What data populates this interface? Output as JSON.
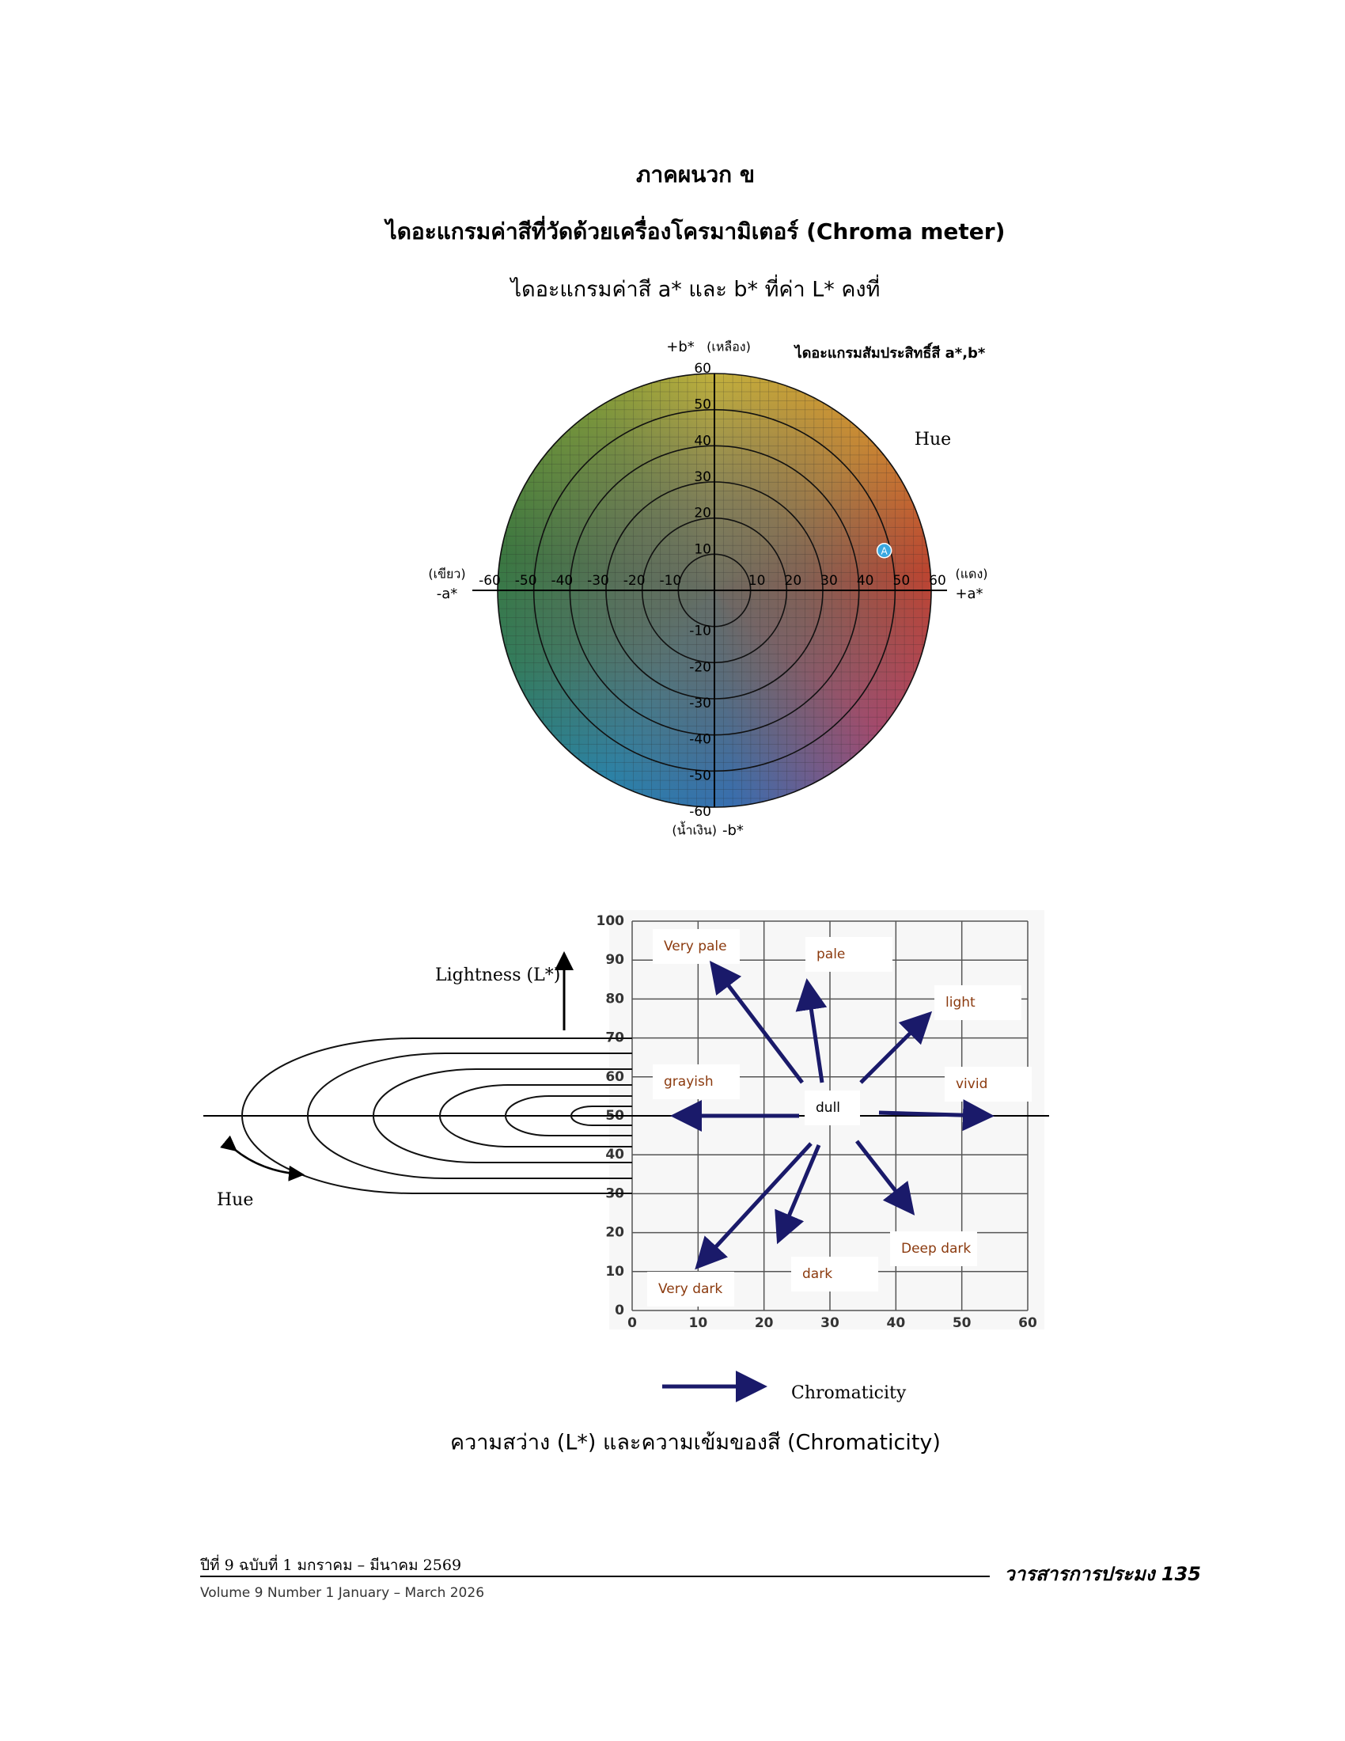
{
  "header": {
    "appendix": "ภาคผนวก ข",
    "title": "ไดอะแกรมค่าสีที่วัดด้วยเครื่องโครมามิเตอร์ (Chroma meter)",
    "subtitle": "ไดอะแกรมค่าสี a* และ b* ที่ค่า L* คงที่"
  },
  "ab_diagram": {
    "title": "ไดอะแกรมสัมประสิทธิ์สี a*,b*",
    "hue_label": "Hue",
    "axes": {
      "plus_b": "+b*",
      "plus_b_note": "(เหลือง)",
      "minus_b": "-b*",
      "minus_b_note": "(น้ำเงิน)",
      "minus_a": "-a*",
      "minus_a_note": "(เขียว)",
      "plus_a": "+a*",
      "plus_a_note": "(แดง)"
    },
    "lim": [
      -60,
      60
    ],
    "xticks": [
      -60,
      -50,
      -40,
      -30,
      -20,
      -10,
      10,
      20,
      30,
      40,
      50,
      60
    ],
    "yticks": [
      -60,
      -50,
      -40,
      -30,
      -20,
      -10,
      10,
      20,
      30,
      40,
      50,
      60
    ],
    "point": {
      "label": "A",
      "a": 47,
      "b": 11
    }
  },
  "lightness_chart": {
    "y_label": "Lightness (L*)",
    "hue_label": "Hue",
    "x_label": "Chromaticity",
    "xlim": [
      0,
      60
    ],
    "ylim": [
      0,
      100
    ],
    "xticks": [
      0,
      10,
      20,
      30,
      40,
      50,
      60
    ],
    "yticks": [
      0,
      10,
      20,
      30,
      40,
      50,
      60,
      70,
      80,
      90,
      100
    ],
    "terms": [
      "Very pale",
      "pale",
      "light",
      "grayish",
      "dull",
      "vivid",
      "Deep dark",
      "dark",
      "Very dark"
    ]
  },
  "caption": "ความสว่าง (L*) และความเข้มของสี (Chromaticity)",
  "footer": {
    "thai": "ปีที่ 9 ฉบับที่ 1 มกราคม – มีนาคม 2569",
    "english": "Volume 9 Number 1 January – March 2026",
    "journal": "วารสารการประมง 135"
  }
}
